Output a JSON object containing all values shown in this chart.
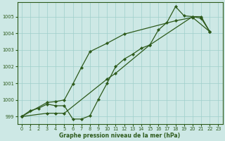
{
  "xlabel": "Graphe pression niveau de la mer (hPa)",
  "bg_color": "#cde8e5",
  "line_color": "#2d5a1b",
  "grid_color": "#9ecfca",
  "ylim": [
    998.55,
    1005.85
  ],
  "xlim": [
    -0.5,
    23.5
  ],
  "yticks": [
    999,
    1000,
    1001,
    1002,
    1003,
    1004,
    1005
  ],
  "xticks": [
    0,
    1,
    2,
    3,
    4,
    5,
    6,
    7,
    8,
    9,
    10,
    11,
    12,
    13,
    14,
    15,
    16,
    17,
    18,
    19,
    20,
    21,
    22,
    23
  ],
  "line_main_x": [
    0,
    1,
    2,
    3,
    4,
    5,
    6,
    7,
    8,
    9,
    10,
    11,
    12,
    13,
    14,
    15,
    16,
    17,
    18,
    19,
    20,
    21,
    22
  ],
  "line_main_y": [
    999.0,
    999.35,
    999.5,
    999.75,
    999.65,
    999.65,
    998.85,
    998.85,
    999.05,
    1000.05,
    1001.0,
    1002.0,
    1002.45,
    1002.75,
    1003.1,
    1003.3,
    1004.2,
    1004.65,
    1005.6,
    1005.05,
    1005.0,
    1004.9,
    1004.1
  ],
  "line_diag_x": [
    0,
    3,
    4,
    5,
    10,
    11,
    15,
    20,
    21,
    22
  ],
  "line_diag_y": [
    999.0,
    999.2,
    999.2,
    999.2,
    1001.25,
    1001.6,
    1003.3,
    1005.0,
    1005.0,
    1004.1
  ],
  "line_mid_x": [
    0,
    3,
    4,
    5,
    6,
    7,
    8,
    10,
    12,
    18,
    20,
    22
  ],
  "line_mid_y": [
    999.0,
    999.85,
    999.9,
    1000.0,
    1000.95,
    1001.95,
    1002.9,
    1003.4,
    1003.95,
    1004.75,
    1004.95,
    1004.1
  ]
}
